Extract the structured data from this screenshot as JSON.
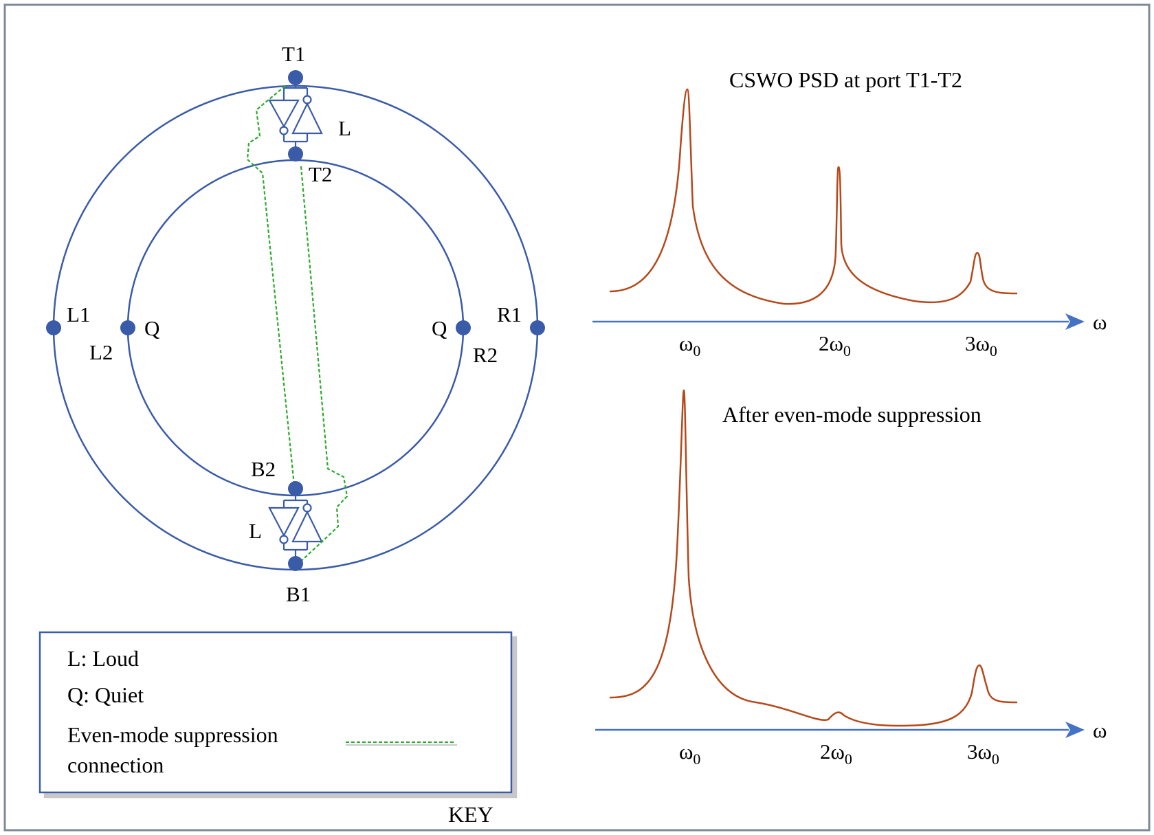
{
  "colors": {
    "wire": "#3a5ba8",
    "node": "#3a5ba8",
    "suppression": "#2eaa2e",
    "spectrum": "#b5481a",
    "axis": "#4472c4",
    "frame": "#7f8a99"
  },
  "ring_labels": {
    "t1": "T1",
    "t2": "T2",
    "b1": "B1",
    "b2": "B2",
    "l1": "L1",
    "l2": "L2",
    "r1": "R1",
    "r2": "R2",
    "q_left": "Q",
    "q_right": "Q",
    "loud_top": "L",
    "loud_bottom": "L"
  },
  "key": {
    "title": "KEY",
    "loud": "L: Loud",
    "quiet": "Q: Quiet",
    "suppression_line1": "Even-mode suppression",
    "suppression_line2": "connection"
  },
  "spectra": [
    {
      "title": "CSWO PSD at port T1-T2",
      "axis_symbol": "ω",
      "tick_labels": [
        {
          "main": "ω",
          "sub": "0"
        },
        {
          "main": "2ω",
          "sub": "0"
        },
        {
          "main": "3ω",
          "sub": "0"
        }
      ]
    },
    {
      "title": "After even-mode suppression",
      "axis_symbol": "ω",
      "tick_labels": [
        {
          "main": "ω",
          "sub": "0"
        },
        {
          "main": "2ω",
          "sub": "0"
        },
        {
          "main": "3ω",
          "sub": "0"
        }
      ]
    }
  ]
}
